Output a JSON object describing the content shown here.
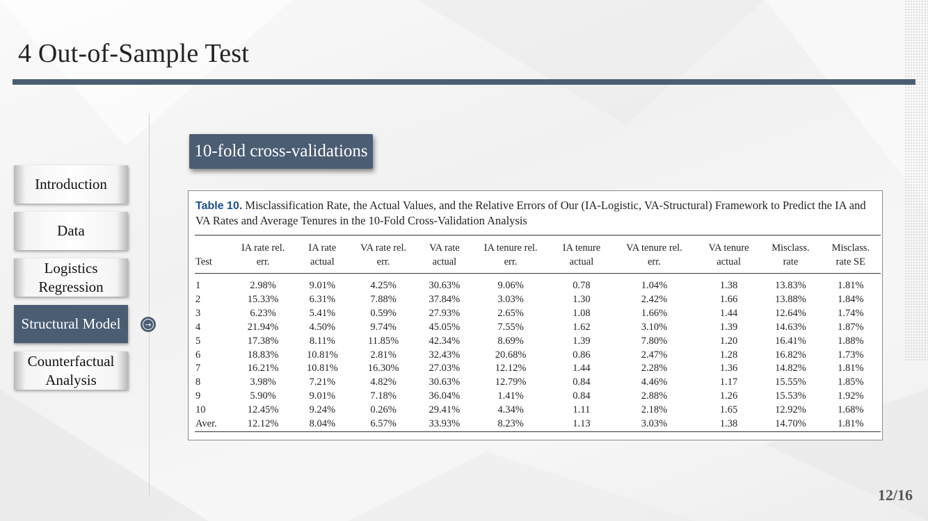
{
  "slide": {
    "title": "4 Out-of-Sample Test",
    "page_number": "12/16",
    "section_tag": "10-fold cross-validations"
  },
  "nav": {
    "items": [
      {
        "label": "Introduction",
        "active": false
      },
      {
        "label": "Data",
        "active": false
      },
      {
        "label": "Logistics Regression",
        "active": false
      },
      {
        "label": "Structural Model",
        "active": true
      },
      {
        "label": "Counterfactual Analysis",
        "active": false
      }
    ]
  },
  "table": {
    "caption_label": "Table 10.",
    "caption_text": "Misclassification Rate, the Actual Values, and the Relative Errors of Our (IA-Logistic, VA-Structural) Framework to Predict the IA and VA Rates and Average Tenures in the 10-Fold Cross-Validation Analysis",
    "headers": [
      [
        "Test"
      ],
      [
        "IA rate rel.",
        "err."
      ],
      [
        "IA rate",
        "actual"
      ],
      [
        "VA rate rel.",
        "err."
      ],
      [
        "VA rate",
        "actual"
      ],
      [
        "IA tenure rel.",
        "err."
      ],
      [
        "IA tenure",
        "actual"
      ],
      [
        "VA tenure rel.",
        "err."
      ],
      [
        "VA tenure",
        "actual"
      ],
      [
        "Misclass.",
        "rate"
      ],
      [
        "Misclass.",
        "rate SE"
      ]
    ],
    "rows": [
      [
        "1",
        "2.98%",
        "9.01%",
        "4.25%",
        "30.63%",
        "9.06%",
        "0.78",
        "1.04%",
        "1.38",
        "13.83%",
        "1.81%"
      ],
      [
        "2",
        "15.33%",
        "6.31%",
        "7.88%",
        "37.84%",
        "3.03%",
        "1.30",
        "2.42%",
        "1.66",
        "13.88%",
        "1.84%"
      ],
      [
        "3",
        "6.23%",
        "5.41%",
        "0.59%",
        "27.93%",
        "2.65%",
        "1.08",
        "1.66%",
        "1.44",
        "12.64%",
        "1.74%"
      ],
      [
        "4",
        "21.94%",
        "4.50%",
        "9.74%",
        "45.05%",
        "7.55%",
        "1.62",
        "3.10%",
        "1.39",
        "14.63%",
        "1.87%"
      ],
      [
        "5",
        "17.38%",
        "8.11%",
        "11.85%",
        "42.34%",
        "8.69%",
        "1.39",
        "7.80%",
        "1.20",
        "16.41%",
        "1.88%"
      ],
      [
        "6",
        "18.83%",
        "10.81%",
        "2.81%",
        "32.43%",
        "20.68%",
        "0.86",
        "2.47%",
        "1.28",
        "16.82%",
        "1.73%"
      ],
      [
        "7",
        "16.21%",
        "10.81%",
        "16.30%",
        "27.03%",
        "12.12%",
        "1.44",
        "2.28%",
        "1.36",
        "14.82%",
        "1.81%"
      ],
      [
        "8",
        "3.98%",
        "7.21%",
        "4.82%",
        "30.63%",
        "12.79%",
        "0.84",
        "4.46%",
        "1.17",
        "15.55%",
        "1.85%"
      ],
      [
        "9",
        "5.90%",
        "9.01%",
        "7.18%",
        "36.04%",
        "1.41%",
        "0.84",
        "2.88%",
        "1.26",
        "15.53%",
        "1.92%"
      ],
      [
        "10",
        "12.45%",
        "9.24%",
        "0.26%",
        "29.41%",
        "4.34%",
        "1.11",
        "2.18%",
        "1.65",
        "12.92%",
        "1.68%"
      ],
      [
        "Aver.",
        "12.12%",
        "8.04%",
        "6.57%",
        "33.93%",
        "8.23%",
        "1.13",
        "3.03%",
        "1.38",
        "14.70%",
        "1.81%"
      ]
    ]
  },
  "colors": {
    "accent": "#4a5d73",
    "caption_label": "#1f4e8c"
  }
}
